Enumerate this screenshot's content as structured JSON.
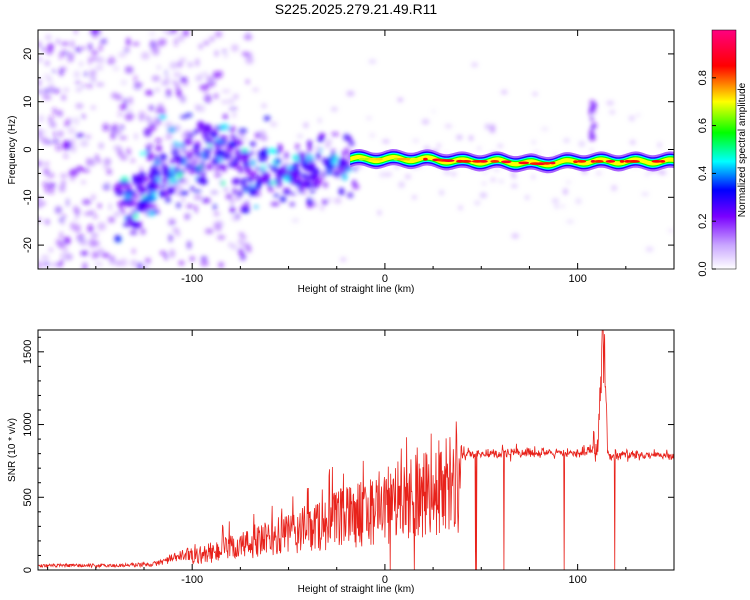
{
  "chart_data": [
    {
      "type": "heatmap",
      "title": "S225.2025.279.21.49.R11",
      "xlabel": "Height of straight line (km)",
      "ylabel": "Frequency (Hz)",
      "xlim": [
        -180,
        150
      ],
      "ylim": [
        -25,
        25
      ],
      "x_ticks": [
        -100,
        0,
        100
      ],
      "y_ticks": [
        -20,
        -10,
        0,
        10,
        20
      ],
      "colorbar": {
        "label": "Normalized spectral amplitude",
        "range": [
          0,
          1
        ],
        "ticks": [
          "0.0",
          "0.2",
          "0.4",
          "0.6",
          "0.8"
        ],
        "colors": [
          "#ffffff",
          "#c9a6ff",
          "#7a00ff",
          "#0000ff",
          "#00ffff",
          "#00ff00",
          "#ffff00",
          "#ff0000",
          "#ff0080"
        ]
      },
      "ridge": {
        "x": [
          -135,
          -125,
          -110,
          -100,
          -90,
          -80,
          -70,
          -60,
          -50,
          -40,
          -30,
          -20,
          -10,
          0,
          20,
          40,
          60,
          80,
          100,
          120,
          150
        ],
        "y": [
          -13,
          -8,
          -5,
          -3,
          1,
          -2,
          -5,
          -4,
          -6,
          -4,
          -3,
          -2,
          -2,
          -2,
          -2,
          -2.5,
          -2.5,
          -3,
          -2.5,
          -2.5,
          -2.5
        ]
      }
    },
    {
      "type": "line",
      "xlabel": "Height of straight line (km)",
      "ylabel": "SNR (10 * v/v)",
      "xlim": [
        -180,
        150
      ],
      "ylim": [
        0,
        1650
      ],
      "x_ticks": [
        -100,
        0,
        100
      ],
      "y_ticks": [
        0,
        500,
        1000,
        1500
      ],
      "color": "#e8221b",
      "series": [
        {
          "x": [
            -180,
            -140,
            -120,
            -100,
            -80,
            -60,
            -40,
            -20,
            0,
            10,
            20,
            30,
            40,
            50,
            60,
            80,
            100,
            110,
            113,
            116,
            120,
            130,
            150
          ],
          "y": [
            30,
            30,
            40,
            120,
            200,
            280,
            380,
            480,
            580,
            650,
            720,
            760,
            790,
            800,
            805,
            800,
            800,
            850,
            1650,
            780,
            790,
            790,
            790
          ]
        }
      ]
    }
  ]
}
